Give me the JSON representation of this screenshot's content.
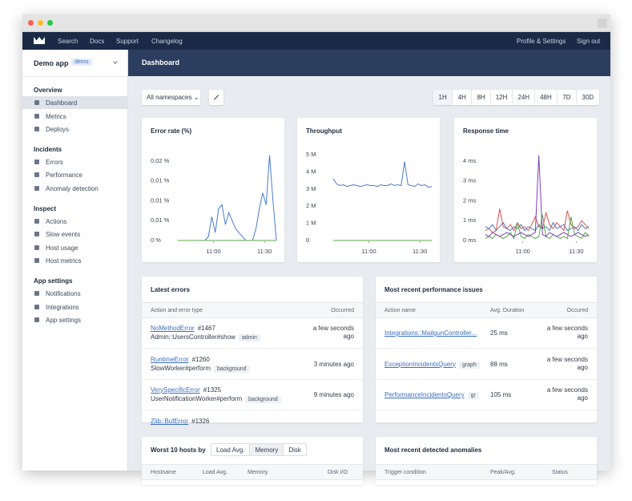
{
  "nav": {
    "items": [
      "Search",
      "Docs",
      "Support",
      "Changelog"
    ],
    "right": [
      "Profile & Settings",
      "Sign out"
    ]
  },
  "sidebar": {
    "app": "Demo app",
    "badge": "demo",
    "sections": [
      {
        "title": "Overview",
        "items": [
          "Dashboard",
          "Metrics",
          "Deploys"
        ]
      },
      {
        "title": "Incidents",
        "items": [
          "Errors",
          "Performance",
          "Anomaly detection"
        ]
      },
      {
        "title": "Inspect",
        "items": [
          "Actions",
          "Slow events",
          "Host usage",
          "Host metrics"
        ]
      },
      {
        "title": "App settings",
        "items": [
          "Notifications",
          "Integrations",
          "App settings"
        ]
      }
    ]
  },
  "header": {
    "title": "Dashboard"
  },
  "toolbar": {
    "namespace": "All namespaces ⌄",
    "ranges": [
      "1H",
      "4H",
      "8H",
      "12H",
      "24H",
      "48H",
      "7D",
      "30D"
    ]
  },
  "charts": [
    {
      "type": "line",
      "title": "Error rate (%)",
      "ylim": [
        0,
        0.02
      ],
      "xlim": [
        0,
        29
      ],
      "yticks": [
        {
          "value": 0,
          "label": "0 %"
        },
        {
          "value": 0.005,
          "label": "0,01 %"
        },
        {
          "value": 0.01,
          "label": "0,01 %"
        },
        {
          "value": 0.015,
          "label": "0,01 %"
        },
        {
          "value": 0.02,
          "label": "0,02 %"
        }
      ],
      "xticks": [
        {
          "value": 10.5,
          "label": "11:00"
        },
        {
          "value": 25.5,
          "label": "11:30"
        }
      ],
      "series": [
        {
          "color": "#4a7bc8",
          "values": [
            0,
            0,
            0,
            0,
            0,
            0,
            0,
            0,
            0,
            0.001,
            0.006,
            0.002,
            0.008,
            0.009,
            0.004,
            0.007,
            0.005,
            0.003,
            0.002,
            0.001,
            0,
            0,
            0,
            0.003,
            0.008,
            0.012,
            0.009,
            0.0215,
            0.01,
            0
          ]
        },
        {
          "color": "#5aa84a",
          "values": [
            0,
            0,
            0,
            0,
            0,
            0,
            0,
            0,
            0,
            0,
            0,
            0,
            0,
            0,
            0,
            0,
            0,
            0,
            0,
            0,
            0,
            0,
            0,
            0,
            0,
            0,
            0,
            0,
            0,
            0
          ]
        }
      ]
    },
    {
      "type": "line",
      "title": "Throughput",
      "ylim": [
        0,
        5000000
      ],
      "xlim": [
        0,
        29
      ],
      "yticks": [
        0,
        {
          "value": 1000000,
          "label": "1 M"
        },
        {
          "value": 2000000,
          "label": "2 M"
        },
        {
          "value": 3000000,
          "label": "3 M"
        },
        {
          "value": 4000000,
          "label": "4 M"
        },
        {
          "value": 5000000,
          "label": "5 M"
        }
      ],
      "xticks": [
        {
          "value": 10.5,
          "label": "11:00"
        },
        {
          "value": 25.5,
          "label": "11:30"
        }
      ],
      "series": [
        {
          "color": "#4a7bc8",
          "values": [
            3600000,
            3300000,
            3200000,
            3250000,
            3150000,
            3200000,
            3250000,
            3200000,
            3150000,
            3200000,
            3250000,
            3200000,
            3200000,
            3150000,
            3250000,
            3200000,
            3200000,
            3300000,
            3200000,
            3250000,
            3200000,
            4600000,
            3250000,
            3200000,
            3150000,
            3300000,
            3200000,
            3250000,
            3100000,
            3150000
          ]
        },
        {
          "color": "#5aa84a",
          "values": [
            0,
            0,
            0,
            0,
            0,
            0,
            0,
            0,
            0,
            0,
            0,
            0,
            0,
            0,
            0,
            0,
            0,
            0,
            0,
            0,
            0,
            0,
            0,
            0,
            0,
            0,
            0,
            0,
            0,
            0
          ]
        }
      ]
    },
    {
      "type": "line",
      "title": "Response time",
      "ylim": [
        0,
        4
      ],
      "xlim": [
        0,
        29
      ],
      "yticks": [
        {
          "value": 0,
          "label": "0 ms"
        },
        {
          "value": 1,
          "label": "1 ms"
        },
        {
          "value": 2,
          "label": "2 ms"
        },
        {
          "value": 3,
          "label": "3 ms"
        },
        {
          "value": 4,
          "label": "4 ms"
        }
      ],
      "xticks": [
        {
          "value": 10.5,
          "label": "11:00"
        },
        {
          "value": 25.5,
          "label": "11:30"
        }
      ],
      "series": [
        {
          "color": "#d9534f",
          "values": [
            0.5,
            0.6,
            0.4,
            0.5,
            1.6,
            0.7,
            0.6,
            0.8,
            0.5,
            0.9,
            0.6,
            0.7,
            0.5,
            0.8,
            1.2,
            0.7,
            0.6,
            1.4,
            0.8,
            0.6,
            0.9,
            0.7,
            0.5,
            1.5,
            0.8,
            0.6,
            0.7,
            1.0,
            0.8,
            0.6
          ]
        },
        {
          "color": "#4a7bc8",
          "values": [
            0.7,
            0.6,
            0.8,
            0.5,
            0.7,
            0.9,
            0.6,
            0.5,
            0.7,
            0.6,
            0.8,
            0.5,
            0.7,
            0.6,
            0.5,
            0.8,
            0.6,
            0.7,
            0.5,
            0.9,
            0.6,
            0.7,
            0.8,
            0.5,
            0.6,
            0.7,
            0.5,
            0.8,
            0.6,
            0.7
          ]
        },
        {
          "color": "#5aa84a",
          "values": [
            0.1,
            0.2,
            0.1,
            0.3,
            0.2,
            0.1,
            0.2,
            0.4,
            0.1,
            0.9,
            0.2,
            0.1,
            0.3,
            0.2,
            0.1,
            0.2,
            1.3,
            0.2,
            0.1,
            0.3,
            0.2,
            0.1,
            0.2,
            0.1,
            1.2,
            0.3,
            0.2,
            0.1,
            0.4,
            0.2
          ]
        },
        {
          "color": "#7b3fb5",
          "values": [
            0.3,
            0.2,
            0.4,
            0.3,
            0.2,
            0.3,
            0.4,
            0.3,
            0.2,
            0.3,
            0.4,
            0.3,
            0.2,
            0.3,
            0.4,
            4.3,
            0.3,
            0.2,
            0.4,
            0.3,
            0.2,
            0.3,
            0.4,
            0.3,
            0.2,
            0.3,
            0.4,
            0.3,
            0.2,
            0.3
          ]
        }
      ]
    }
  ],
  "latest_errors": {
    "title": "Latest errors",
    "columns": [
      "Action and error type",
      "Occurred"
    ],
    "rows": [
      {
        "error": "NoMethodError",
        "number": "#1467",
        "action": "Admin::UsersController#show",
        "tag": "admin",
        "occurred": "a few seconds ago"
      },
      {
        "error": "RuntimeError",
        "number": "#1260",
        "action": "SlowWorker#perform",
        "tag": "background",
        "occurred": "3 minutes ago"
      },
      {
        "error": "VerySpecificError",
        "number": "#1325",
        "action": "UserNotificationWorker#perform",
        "tag": "background",
        "occurred": "9 minutes ago"
      },
      {
        "error": "Zlib::BufError",
        "number": "#1326"
      }
    ]
  },
  "performance": {
    "title": "Most recent performance issues",
    "columns": [
      "Action name",
      "Avg. Duration",
      "Occured"
    ],
    "rows": [
      {
        "action": "Integrations::MailgunController...",
        "duration": "25 ms",
        "occurred": "a few seconds ago"
      },
      {
        "action": "ExceptionIncidentsQuery",
        "tag": "graph",
        "duration": "88 ms",
        "occurred": "a few seconds ago"
      },
      {
        "action": "PerformanceIncidentsQuery",
        "tag": "gr",
        "duration": "105 ms",
        "occurred": "a few seconds ago"
      }
    ]
  },
  "hosts": {
    "title": "Worst 10 hosts by",
    "tabs": [
      "Load Avg.",
      "Memory",
      "Disk"
    ],
    "columns": [
      "Hostname",
      "Load Avg.",
      "Memory",
      "Disk I/O"
    ]
  },
  "anomalies": {
    "title": "Most recent detected anomalies",
    "columns": [
      "Trigger condition",
      "Peak/Avg.",
      "Status"
    ]
  }
}
